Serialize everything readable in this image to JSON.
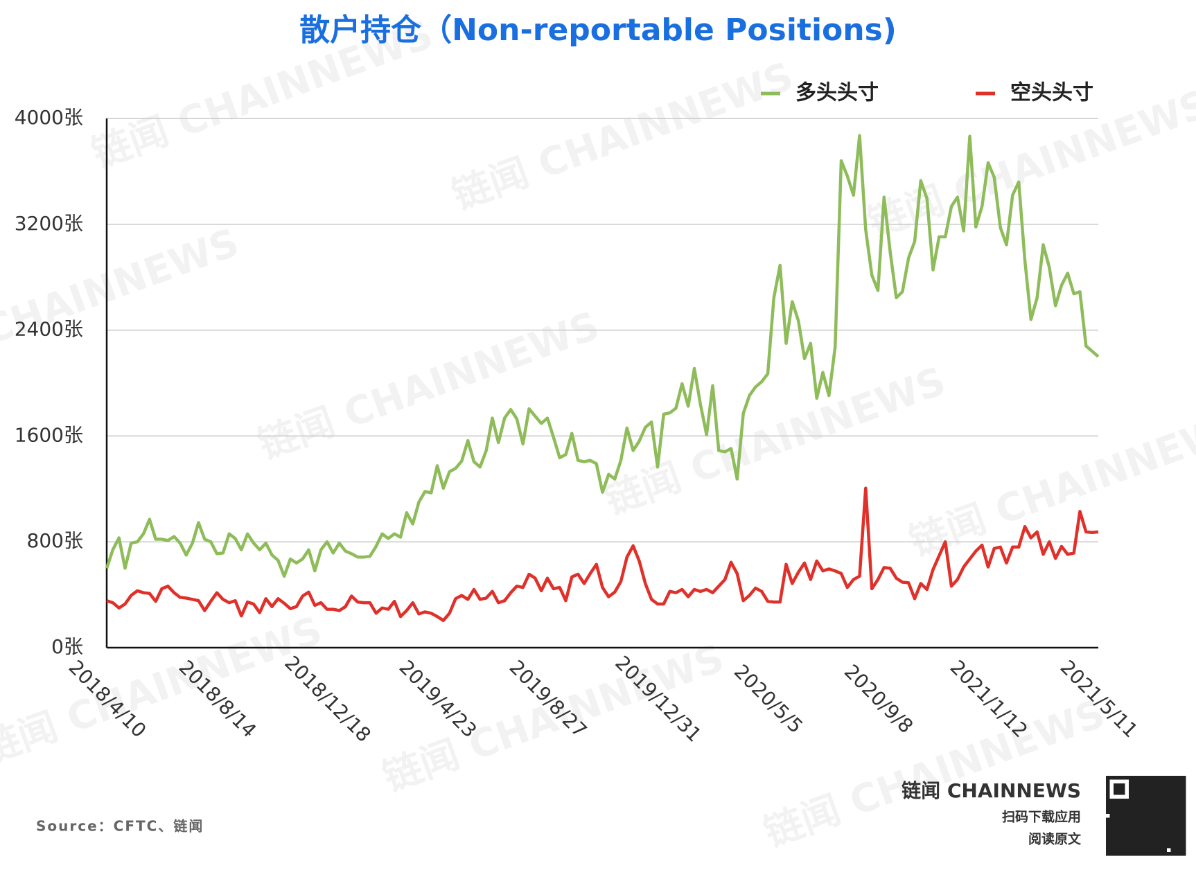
{
  "chart_data": {
    "type": "line",
    "title": "散户持仓（Non-reportable Positions)",
    "source": "Source：CFTC、链闻",
    "watermark": "链闻 CHAINNEWS",
    "brand": {
      "name": "链闻 CHAINNEWS",
      "line1": "扫码下载应用",
      "line2": "阅读原文"
    },
    "categories": [
      "2018/4/10",
      null,
      null,
      null,
      null,
      null,
      null,
      null,
      null,
      null,
      null,
      null,
      null,
      null,
      null,
      null,
      null,
      null,
      "2018/8/14",
      null,
      null,
      null,
      null,
      null,
      null,
      null,
      null,
      null,
      null,
      null,
      null,
      null,
      null,
      null,
      null,
      null,
      "2018/12/18",
      null,
      null,
      null,
      null,
      null,
      null,
      null,
      null,
      null,
      null,
      null,
      null,
      null,
      null,
      null,
      null,
      null,
      "2019/4/23",
      null,
      null,
      null,
      null,
      null,
      null,
      null,
      null,
      null,
      null,
      null,
      null,
      null,
      null,
      null,
      null,
      null,
      "2019/8/27",
      null,
      null,
      null,
      null,
      null,
      null,
      null,
      null,
      null,
      null,
      null,
      null,
      null,
      null,
      null,
      null,
      null,
      "2019/12/31",
      null,
      null,
      null,
      null,
      null,
      null,
      null,
      null,
      null,
      null,
      null,
      null,
      null,
      null,
      null,
      null,
      null,
      "2020/5/5",
      null,
      null,
      null,
      null,
      null,
      null,
      null,
      null,
      null,
      null,
      null,
      null,
      null,
      null,
      null,
      null,
      null,
      "2020/9/8",
      null,
      null,
      null,
      null,
      null,
      null,
      null,
      null,
      null,
      null,
      null,
      null,
      null,
      null,
      null,
      null,
      null,
      "2021/1/12",
      null,
      null,
      null,
      null,
      null,
      null,
      null,
      null,
      null,
      null,
      null,
      null,
      null,
      null,
      null,
      null,
      null,
      "2021/5/11"
    ],
    "series": [
      {
        "name": "多头头寸",
        "color": "#8fbc5a",
        "values": [
          600,
          740,
          830,
          600,
          790,
          800,
          860,
          970,
          820,
          820,
          810,
          840,
          790,
          700,
          790,
          945,
          820,
          800,
          710,
          715,
          860,
          825,
          740,
          860,
          790,
          740,
          790,
          700,
          660,
          540,
          670,
          640,
          670,
          740,
          580,
          740,
          800,
          715,
          790,
          730,
          710,
          685,
          685,
          690,
          765,
          860,
          825,
          860,
          835,
          1020,
          935,
          1100,
          1180,
          1170,
          1375,
          1205,
          1330,
          1355,
          1410,
          1565,
          1405,
          1365,
          1490,
          1735,
          1550,
          1735,
          1800,
          1730,
          1540,
          1805,
          1750,
          1695,
          1735,
          1590,
          1435,
          1460,
          1620,
          1415,
          1405,
          1415,
          1390,
          1175,
          1310,
          1275,
          1415,
          1660,
          1490,
          1560,
          1665,
          1705,
          1365,
          1765,
          1775,
          1810,
          1995,
          1825,
          2110,
          1840,
          1610,
          1980,
          1490,
          1480,
          1505,
          1275,
          1770,
          1905,
          1970,
          2010,
          2070,
          2645,
          2890,
          2300,
          2615,
          2470,
          2185,
          2300,
          1885,
          2080,
          1905,
          2270,
          3680,
          3565,
          3420,
          3870,
          3160,
          2815,
          2700,
          3405,
          2990,
          2645,
          2690,
          2945,
          3070,
          3530,
          3395,
          2855,
          3105,
          3105,
          3335,
          3405,
          3150,
          3865,
          3180,
          3335,
          3665,
          3555,
          3175,
          3045,
          3420,
          3520,
          2930,
          2480,
          2645,
          3045,
          2875,
          2585,
          2740,
          2830,
          2675,
          2690,
          2280,
          2240,
          2200
        ]
      },
      {
        "name": "空头头寸",
        "color": "#e0302a",
        "values": [
          355,
          340,
          300,
          330,
          395,
          430,
          415,
          410,
          350,
          445,
          465,
          415,
          380,
          375,
          365,
          355,
          280,
          350,
          415,
          365,
          340,
          355,
          240,
          345,
          330,
          265,
          370,
          310,
          370,
          335,
          295,
          310,
          390,
          420,
          320,
          340,
          290,
          290,
          280,
          310,
          390,
          345,
          340,
          340,
          260,
          300,
          290,
          350,
          235,
          280,
          340,
          255,
          270,
          260,
          235,
          205,
          260,
          370,
          395,
          365,
          440,
          365,
          375,
          425,
          340,
          355,
          415,
          465,
          455,
          555,
          525,
          430,
          525,
          445,
          455,
          355,
          535,
          555,
          485,
          560,
          630,
          455,
          385,
          420,
          500,
          685,
          770,
          655,
          485,
          365,
          330,
          330,
          425,
          415,
          440,
          385,
          440,
          425,
          440,
          415,
          465,
          515,
          645,
          560,
          355,
          395,
          450,
          425,
          350,
          345,
          345,
          630,
          485,
          570,
          640,
          515,
          655,
          580,
          595,
          580,
          560,
          455,
          515,
          540,
          1205,
          445,
          515,
          605,
          600,
          525,
          495,
          490,
          370,
          485,
          440,
          590,
          695,
          800,
          465,
          515,
          610,
          670,
          730,
          775,
          610,
          750,
          760,
          640,
          760,
          760,
          915,
          830,
          875,
          705,
          800,
          675,
          765,
          705,
          715,
          1030,
          875,
          870,
          875
        ]
      }
    ],
    "ylim": [
      0,
      4000
    ],
    "yticks": [
      {
        "value": 0,
        "label": "0张"
      },
      {
        "value": 800,
        "label": "800张"
      },
      {
        "value": 1600,
        "label": "1600张"
      },
      {
        "value": 2400,
        "label": "2400张"
      },
      {
        "value": 3200,
        "label": "3200张"
      },
      {
        "value": 4000,
        "label": "4000张"
      }
    ],
    "grid": true
  }
}
